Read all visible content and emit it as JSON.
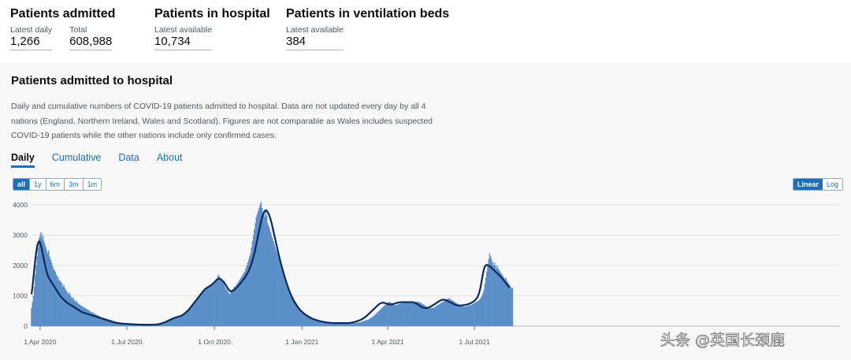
{
  "headlines": [
    {
      "title": "Patients admitted",
      "metrics": [
        {
          "label": "Latest daily",
          "value": "1,266"
        },
        {
          "label": "Total",
          "value": "608,988"
        }
      ]
    },
    {
      "title": "Patients in hospital",
      "metrics": [
        {
          "label": "Latest available",
          "value": "10,734"
        }
      ]
    },
    {
      "title": "Patients in ventilation beds",
      "metrics": [
        {
          "label": "Latest available",
          "value": "384"
        }
      ]
    }
  ],
  "card": {
    "title": "Patients admitted to hospital",
    "description": "Daily and cumulative numbers of COVID-19 patients admitted to hospital. Data are not updated every day by all 4 nations (England, Northern Ireland, Wales and Scotland). Figures are not comparable as Wales includes suspected COVID-19 patients while the other nations include only confirmed cases.",
    "tabs": [
      "Daily",
      "Cumulative",
      "Data",
      "About"
    ],
    "active_tab": "Daily",
    "ranges": [
      "all",
      "1y",
      "6m",
      "3m",
      "1m"
    ],
    "active_range": "all",
    "scales": [
      "Linear",
      "Log"
    ],
    "active_scale": "Linear"
  },
  "watermark": "头条 @英国长颈鹿",
  "colors": {
    "bar": "#5b8fc9",
    "bar_highlight": "#2f6db3",
    "average_line": "#0b2a5c",
    "accent": "#1d70b8"
  },
  "chart_data": {
    "type": "bar",
    "x_start": "2020-03-23",
    "ylim": [
      0,
      4000
    ],
    "y_ticks": [
      0,
      1000,
      2000,
      3000,
      4000
    ],
    "x_ticks": [
      {
        "date": "2020-04-01",
        "label": "1 Apr 2020"
      },
      {
        "date": "2020-07-01",
        "label": "1 Jul 2020"
      },
      {
        "date": "2020-10-01",
        "label": "1 Oct 2020"
      },
      {
        "date": "2021-01-01",
        "label": "1 Jan 2021"
      },
      {
        "date": "2021-04-01",
        "label": "1 Apr 2021"
      },
      {
        "date": "2021-07-01",
        "label": "1 Jul 2021"
      }
    ],
    "grid": true,
    "series": [
      {
        "kind": "bars",
        "values": [
          600,
          800,
          1000,
          1300,
          1700,
          2000,
          2300,
          2600,
          2900,
          3000,
          3100,
          2900,
          3000,
          2800,
          2700,
          2600,
          2500,
          2400,
          2500,
          2300,
          2200,
          2100,
          2000,
          1900,
          1850,
          1800,
          1700,
          1650,
          1600,
          1500,
          1500,
          1450,
          1400,
          1300,
          1350,
          1250,
          1200,
          1150,
          1100,
          1050,
          1100,
          1000,
          950,
          900,
          950,
          850,
          800,
          850,
          780,
          750,
          720,
          700,
          680,
          650,
          640,
          600,
          620,
          580,
          560,
          550,
          530,
          500,
          480,
          470,
          450,
          430,
          420,
          400,
          380,
          360,
          350,
          340,
          320,
          300,
          290,
          280,
          270,
          260,
          250,
          240,
          230,
          220,
          210,
          200,
          190,
          180,
          170,
          160,
          150,
          140,
          130,
          120,
          115,
          110,
          105,
          100,
          95,
          90,
          88,
          85,
          80,
          78,
          75,
          72,
          70,
          68,
          65,
          62,
          60,
          58,
          56,
          55,
          54,
          52,
          50,
          50,
          48,
          47,
          46,
          45,
          45,
          44,
          43,
          42,
          42,
          42,
          43,
          44,
          45,
          48,
          50,
          55,
          60,
          65,
          70,
          80,
          90,
          100,
          110,
          120,
          130,
          140,
          160,
          180,
          200,
          220,
          230,
          240,
          250,
          260,
          270,
          280,
          290,
          300,
          310,
          320,
          330,
          340,
          350,
          380,
          400,
          420,
          450,
          480,
          510,
          540,
          570,
          600,
          640,
          680,
          720,
          760,
          800,
          840,
          880,
          920,
          960,
          1000,
          1050,
          1100,
          1150,
          1200,
          1230,
          1250,
          1280,
          1300,
          1320,
          1330,
          1350,
          1370,
          1400,
          1420,
          1450,
          1500,
          1550,
          1600,
          1700,
          1650,
          1600,
          1550,
          1500,
          1450,
          1400,
          1300,
          1250,
          1200,
          1150,
          1100,
          1050,
          1100,
          1150,
          1200,
          1250,
          1300,
          1300,
          1350,
          1400,
          1450,
          1500,
          1550,
          1600,
          1650,
          1700,
          1750,
          1800,
          1900,
          2000,
          2100,
          2200,
          2300,
          2400,
          2600,
          2800,
          3000,
          3200,
          3400,
          3600,
          3700,
          3800,
          3900,
          4000,
          4100,
          3900,
          3700,
          3800,
          3600,
          3800,
          3650,
          3400,
          3300,
          3200,
          3100,
          3000,
          2900,
          2800,
          2700,
          2600,
          2500,
          2400,
          2300,
          2200,
          2100,
          2000,
          1900,
          1800,
          1700,
          1600,
          1500,
          1400,
          1300,
          1200,
          1100,
          1050,
          1000,
          950,
          900,
          850,
          800,
          750,
          700,
          650,
          600,
          570,
          540,
          510,
          480,
          450,
          420,
          400,
          380,
          360,
          340,
          320,
          300,
          280,
          260,
          250,
          240,
          230,
          220,
          210,
          200,
          190,
          180,
          170,
          160,
          155,
          150,
          145,
          140,
          135,
          130,
          125,
          120,
          118,
          116,
          114,
          112,
          110,
          108,
          106,
          105,
          104,
          103,
          102,
          101,
          100,
          100,
          100,
          100,
          100,
          100,
          100,
          100,
          100,
          100,
          100,
          100,
          100,
          100,
          105,
          110,
          115,
          120,
          125,
          130,
          140,
          150,
          160,
          170,
          180,
          190,
          200,
          210,
          220,
          240,
          260,
          280,
          300,
          330,
          360,
          390,
          420,
          450,
          480,
          510,
          540,
          570,
          600,
          630,
          660,
          690,
          720,
          750,
          770,
          790,
          800,
          780,
          760,
          740,
          720,
          700,
          690,
          700,
          710,
          720,
          730,
          740,
          750,
          760,
          770,
          780,
          790,
          800,
          810,
          800,
          790,
          800,
          810,
          790,
          780,
          770,
          780,
          790,
          800,
          810,
          800,
          790,
          780,
          760,
          740,
          720,
          700,
          680,
          660,
          640,
          620,
          600,
          600,
          600,
          600,
          600,
          600,
          620,
          640,
          660,
          680,
          700,
          720,
          740,
          760,
          780,
          800,
          820,
          840,
          860,
          880,
          900,
          920,
          900,
          880,
          860,
          840,
          820,
          800,
          780,
          760,
          740,
          720,
          700,
          690,
          680,
          670,
          660,
          650,
          650,
          650,
          660,
          670,
          680,
          690,
          700,
          710,
          720,
          740,
          760,
          780,
          800,
          820,
          840,
          860,
          900,
          950,
          1000,
          1100,
          1200,
          1400,
          1600,
          1800,
          2000,
          2200,
          2400,
          2300,
          2200,
          2100,
          2000,
          2100,
          2000,
          1900,
          2000,
          1900,
          1850,
          1800,
          1750,
          1700,
          1650,
          1600,
          1550,
          1600,
          1500,
          1450,
          1400,
          1350,
          1300,
          1250,
          1266
        ]
      },
      {
        "kind": "line",
        "values": [
          1050,
          1300,
          1600,
          1900,
          2200,
          2450,
          2650,
          2750,
          2800,
          2750,
          2650,
          2500,
          2350,
          2200,
          2050,
          1900,
          1780,
          1680,
          1600,
          1550,
          1500,
          1450,
          1400,
          1350,
          1300,
          1250,
          1200,
          1150,
          1100,
          1050,
          1000,
          960,
          930,
          900,
          870,
          840,
          800,
          780,
          760,
          740,
          720,
          700,
          680,
          660,
          640,
          620,
          600,
          580,
          560,
          540,
          520,
          500,
          480,
          465,
          450,
          440,
          430,
          420,
          410,
          400,
          390,
          380,
          370,
          360,
          350,
          340,
          330,
          320,
          310,
          300,
          290,
          280,
          270,
          260,
          250,
          240,
          230,
          220,
          210,
          200,
          190,
          180,
          170,
          160,
          150,
          140,
          130,
          120,
          115,
          110,
          105,
          100,
          96,
          92,
          88,
          85,
          82,
          80,
          78,
          76,
          74,
          72,
          70,
          68,
          66,
          64,
          62,
          60,
          58,
          56,
          55,
          54,
          53,
          52,
          51,
          50,
          50,
          49,
          48,
          48,
          47,
          47,
          46,
          46,
          46,
          46,
          46,
          47,
          48,
          50,
          52,
          55,
          58,
          62,
          68,
          75,
          85,
          95,
          105,
          115,
          125,
          140,
          155,
          170,
          185,
          200,
          215,
          230,
          245,
          260,
          270,
          280,
          290,
          300,
          310,
          320,
          330,
          340,
          360,
          380,
          400,
          420,
          450,
          480,
          510,
          540,
          580,
          620,
          660,
          700,
          740,
          780,
          820,
          860,
          900,
          940,
          980,
          1020,
          1060,
          1100,
          1140,
          1180,
          1210,
          1240,
          1260,
          1280,
          1300,
          1320,
          1340,
          1360,
          1390,
          1420,
          1450,
          1480,
          1510,
          1540,
          1560,
          1570,
          1560,
          1540,
          1510,
          1480,
          1450,
          1400,
          1350,
          1300,
          1250,
          1200,
          1170,
          1150,
          1150,
          1160,
          1180,
          1200,
          1230,
          1260,
          1290,
          1320,
          1360,
          1400,
          1440,
          1480,
          1520,
          1560,
          1600,
          1650,
          1700,
          1760,
          1820,
          1900,
          1980,
          2070,
          2170,
          2280,
          2400,
          2550,
          2700,
          2850,
          3000,
          3150,
          3300,
          3450,
          3580,
          3680,
          3750,
          3800,
          3820,
          3800,
          3760,
          3700,
          3620,
          3520,
          3400,
          3270,
          3130,
          2990,
          2850,
          2710,
          2570,
          2430,
          2300,
          2170,
          2050,
          1930,
          1820,
          1710,
          1600,
          1500,
          1400,
          1310,
          1220,
          1140,
          1060,
          990,
          920,
          860,
          800,
          750,
          700,
          650,
          610,
          570,
          530,
          500,
          470,
          440,
          410,
          390,
          370,
          350,
          330,
          310,
          290,
          275,
          260,
          245,
          230,
          220,
          210,
          200,
          190,
          180,
          172,
          164,
          157,
          150,
          144,
          138,
          132,
          127,
          122,
          118,
          114,
          111,
          108,
          106,
          104,
          102,
          101,
          100,
          100,
          100,
          100,
          100,
          100,
          100,
          100,
          100,
          100,
          100,
          100,
          100,
          100,
          102,
          105,
          110,
          115,
          120,
          128,
          136,
          145,
          155,
          165,
          176,
          188,
          200,
          214,
          230,
          248,
          268,
          290,
          315,
          342,
          370,
          400,
          430,
          460,
          490,
          520,
          550,
          580,
          610,
          640,
          670,
          700,
          725,
          745,
          760,
          770,
          775,
          770,
          760,
          750,
          740,
          730,
          720,
          715,
          715,
          720,
          725,
          730,
          740,
          750,
          760,
          770,
          775,
          780,
          785,
          790,
          790,
          790,
          790,
          790,
          790,
          790,
          790,
          790,
          790,
          790,
          790,
          790,
          785,
          775,
          762,
          745,
          725,
          705,
          685,
          665,
          645,
          625,
          610,
          600,
          595,
          595,
          600,
          605,
          615,
          630,
          645,
          660,
          680,
          700,
          720,
          740,
          760,
          780,
          800,
          820,
          840,
          855,
          865,
          870,
          870,
          865,
          855,
          840,
          825,
          810,
          795,
          780,
          765,
          750,
          735,
          720,
          708,
          698,
          690,
          684,
          680,
          680,
          682,
          686,
          690,
          695,
          700,
          706,
          712,
          720,
          730,
          742,
          756,
          772,
          790,
          810,
          835,
          865,
          900,
          950,
          1010,
          1100,
          1220,
          1380,
          1560,
          1740,
          1880,
          1970,
          2010,
          2020,
          2010,
          1990,
          1970,
          1950,
          1920,
          1890,
          1860,
          1830,
          1800,
          1770,
          1740,
          1710,
          1680,
          1650,
          1620,
          1580,
          1540,
          1500,
          1460,
          1420,
          1380,
          1340,
          1300,
          1280
        ]
      }
    ]
  }
}
